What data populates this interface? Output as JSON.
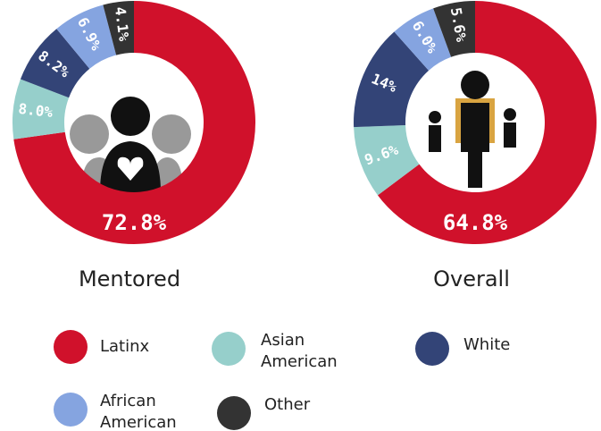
{
  "chart_data": [
    {
      "type": "pie",
      "title": "Mentored",
      "categories": [
        "Latinx",
        "Asian American",
        "White",
        "African American",
        "Other"
      ],
      "values": [
        72.8,
        8.0,
        8.2,
        6.9,
        4.1
      ],
      "value_labels": [
        "72.8%",
        "8.0%",
        "8.2%",
        "6.9%",
        "4.1%"
      ],
      "colors": [
        "#d0112b",
        "#96cfcb",
        "#334477",
        "#85a4e0",
        "#333333"
      ]
    },
    {
      "type": "pie",
      "title": "Overall",
      "categories": [
        "Latinx",
        "Asian American",
        "White",
        "African American",
        "Other"
      ],
      "values": [
        64.8,
        9.6,
        14,
        6.0,
        5.6
      ],
      "value_labels": [
        "64.8%",
        "9.6%",
        "14%",
        "6.0%",
        "5.6%"
      ],
      "colors": [
        "#d0112b",
        "#96cfcb",
        "#334477",
        "#85a4e0",
        "#333333"
      ]
    }
  ]
}
